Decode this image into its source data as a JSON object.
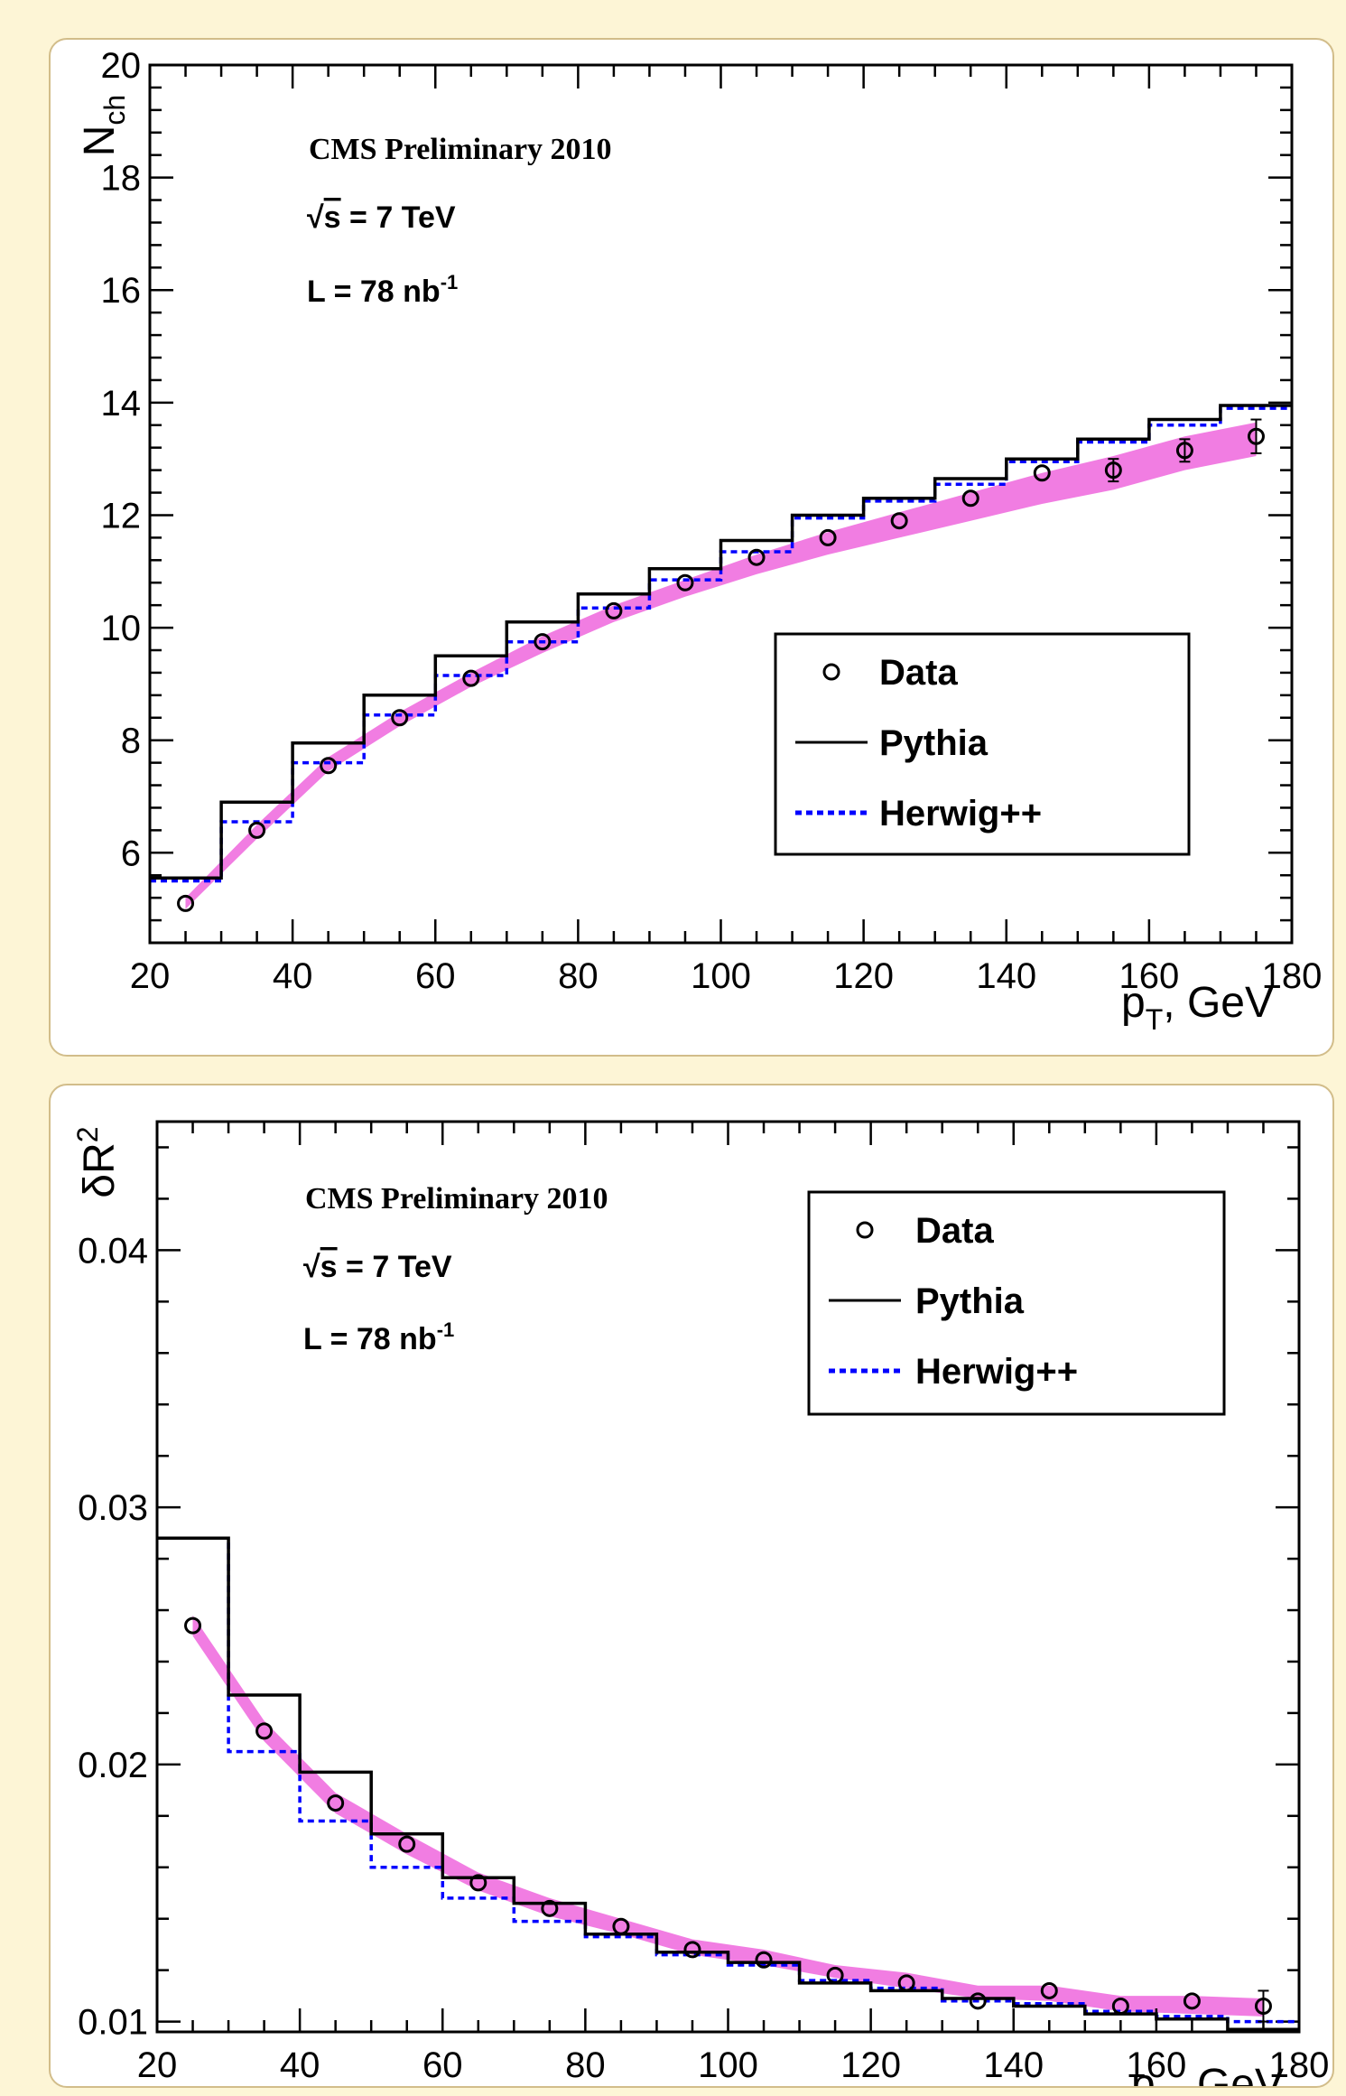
{
  "chart_data": [
    {
      "type": "line",
      "xlabel_main": "p",
      "xlabel_sub": "T",
      "xlabel_unit": ", GeV",
      "ylabel_main": "N",
      "ylabel_sub": "ch",
      "xlim": [
        20,
        180
      ],
      "ylim": [
        4.4,
        20
      ],
      "xticks": [
        20,
        40,
        60,
        80,
        100,
        120,
        140,
        160,
        180
      ],
      "yticks": [
        6,
        8,
        10,
        12,
        14,
        16,
        18,
        20
      ],
      "tick_decimals": 0,
      "annotations": {
        "line1": "CMS Preliminary 2010",
        "line2_sqrt": "√",
        "line2_s": "s",
        "line2_rest": " = 7 TeV",
        "line3": "L = 78 nb",
        "line3_sup": "-1"
      },
      "legend": {
        "data": "Data",
        "pythia": "Pythia",
        "herwig": "Herwig++"
      },
      "x": [
        25,
        35,
        45,
        55,
        65,
        75,
        85,
        95,
        105,
        115,
        125,
        135,
        145,
        155,
        165,
        175
      ],
      "series": [
        {
          "name": "Data",
          "values": [
            5.1,
            6.4,
            7.55,
            8.4,
            9.1,
            9.75,
            10.3,
            10.8,
            11.25,
            11.6,
            11.9,
            12.3,
            12.75,
            12.8,
            13.15,
            13.4
          ],
          "errors": [
            0.1,
            0.1,
            0.1,
            0.1,
            0.1,
            0.1,
            0.1,
            0.1,
            0.1,
            0.1,
            0.1,
            0.1,
            0.15,
            0.2,
            0.2,
            0.3
          ]
        },
        {
          "name": "Pythia",
          "values": [
            5.55,
            6.9,
            7.95,
            8.8,
            9.5,
            10.1,
            10.6,
            11.05,
            11.55,
            12.0,
            12.3,
            12.65,
            13.0,
            13.35,
            13.7,
            13.95
          ]
        },
        {
          "name": "Herwig++",
          "values": [
            5.5,
            6.55,
            7.6,
            8.45,
            9.15,
            9.75,
            10.35,
            10.85,
            11.35,
            11.95,
            12.25,
            12.55,
            12.95,
            13.3,
            13.6,
            13.9
          ]
        }
      ],
      "band": {
        "color": "#ee66dd",
        "lower": [
          5.0,
          6.25,
          7.45,
          8.25,
          8.95,
          9.55,
          10.1,
          10.55,
          10.95,
          11.3,
          11.6,
          11.9,
          12.2,
          12.45,
          12.8,
          13.05
        ],
        "upper": [
          5.2,
          6.5,
          7.7,
          8.5,
          9.2,
          9.85,
          10.4,
          10.85,
          11.3,
          11.7,
          12.05,
          12.4,
          12.75,
          13.05,
          13.4,
          13.65
        ]
      },
      "colors": {
        "data": "#000000",
        "pythia": "#000000",
        "herwig": "#0000ff"
      }
    },
    {
      "type": "line",
      "xlabel_main": "p",
      "xlabel_sub": "T",
      "xlabel_unit": ", GeV",
      "ylabel_main": "δR",
      "ylabel_sup": "2",
      "xlim": [
        20,
        180
      ],
      "ylim": [
        0.0096,
        0.045
      ],
      "xticks": [
        20,
        40,
        60,
        80,
        100,
        120,
        140,
        160,
        180
      ],
      "yticks": [
        0.01,
        0.02,
        0.03,
        0.04
      ],
      "tick_decimals": 2,
      "annotations": {
        "line1": "CMS Preliminary 2010",
        "line2_sqrt": "√",
        "line2_s": "s",
        "line2_rest": " = 7 TeV",
        "line3": "L = 78 nb",
        "line3_sup": "-1"
      },
      "legend": {
        "data": "Data",
        "pythia": "Pythia",
        "herwig": "Herwig++"
      },
      "x": [
        25,
        35,
        45,
        55,
        65,
        75,
        85,
        95,
        105,
        115,
        125,
        135,
        145,
        155,
        165,
        175
      ],
      "series": [
        {
          "name": "Data",
          "values": [
            0.0254,
            0.0213,
            0.0185,
            0.0169,
            0.0154,
            0.0144,
            0.0137,
            0.0128,
            0.0124,
            0.0118,
            0.0115,
            0.0108,
            0.0112,
            0.0106,
            0.0108,
            0.0106
          ],
          "errors": [
            0.0002,
            0.0002,
            0.0002,
            0.0002,
            0.0002,
            0.0002,
            0.0002,
            0.0002,
            0.0002,
            0.0002,
            0.0002,
            0.0002,
            0.0002,
            0.0003,
            0.0003,
            0.0006
          ]
        },
        {
          "name": "Pythia",
          "values": [
            0.0288,
            0.0227,
            0.0197,
            0.0173,
            0.0156,
            0.0146,
            0.0134,
            0.0127,
            0.0123,
            0.0115,
            0.0112,
            0.0109,
            0.0106,
            0.0103,
            0.0101,
            0.0097
          ]
        },
        {
          "name": "Herwig++",
          "values": [
            0.0288,
            0.0205,
            0.0178,
            0.016,
            0.0148,
            0.0139,
            0.0133,
            0.0126,
            0.0122,
            0.0116,
            0.0113,
            0.0108,
            0.0107,
            0.0104,
            0.0102,
            0.01
          ]
        }
      ],
      "band": {
        "color": "#ee66dd",
        "lower": [
          0.025,
          0.0209,
          0.0181,
          0.0165,
          0.0151,
          0.0141,
          0.0134,
          0.0126,
          0.0122,
          0.0117,
          0.0113,
          0.0109,
          0.0108,
          0.0104,
          0.0103,
          0.0102
        ],
        "upper": [
          0.0258,
          0.0217,
          0.0189,
          0.0173,
          0.0158,
          0.0148,
          0.014,
          0.0132,
          0.0128,
          0.0122,
          0.0119,
          0.0114,
          0.0114,
          0.011,
          0.011,
          0.0109
        ]
      },
      "colors": {
        "data": "#000000",
        "pythia": "#000000",
        "herwig": "#0000ff"
      }
    }
  ]
}
